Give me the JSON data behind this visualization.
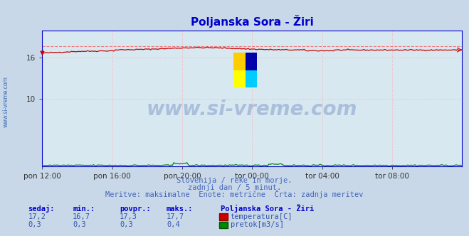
{
  "title": "Poljanska Sora - Žiri",
  "title_color": "#0000cc",
  "bg_color": "#c8d8e8",
  "plot_bg_color": "#d8e8f0",
  "grid_color": "#ffaaaa",
  "watermark_text": "www.si-vreme.com",
  "watermark_color": "#3355aa",
  "subtitle_lines": [
    "Slovenija / reke in morje.",
    "zadnji dan / 5 minut.",
    "Meritve: maksimalne  Enote: metrične  Črta: zadnja meritev"
  ],
  "subtitle_color": "#4466bb",
  "x_tick_labels": [
    "pon 12:00",
    "pon 16:00",
    "pon 20:00",
    "tor 00:00",
    "tor 04:00",
    "tor 08:00"
  ],
  "x_tick_positions": [
    0.0,
    0.1667,
    0.3333,
    0.5,
    0.6667,
    0.8333
  ],
  "y_ticks": [
    10,
    16
  ],
  "y_min": 0,
  "y_max": 20,
  "temp_min": 16.7,
  "temp_max": 17.7,
  "temp_mean": 17.3,
  "temp_current": 17.2,
  "flow_min": 0.3,
  "flow_max": 0.4,
  "flow_mean": 0.3,
  "flow_current": 0.3,
  "temp_color": "#cc0000",
  "flow_color": "#008800",
  "dashed_color": "#ee7777",
  "axis_color": "#0000cc",
  "tick_color": "#333333",
  "legend_title": "Poljanska Sora - Žiri",
  "legend_title_color": "#0000cc",
  "table_headers": [
    "sedaj:",
    "min.:",
    "povpr.:",
    "maks.:"
  ],
  "table_temp": [
    "17,2",
    "16,7",
    "17,3",
    "17,7"
  ],
  "table_flow": [
    "0,3",
    "0,3",
    "0,3",
    "0,4"
  ],
  "table_color": "#3355aa",
  "table_header_color": "#0000cc",
  "n_points": 288,
  "left_label": "www.si-vreme.com",
  "left_label_color": "#2255aa"
}
